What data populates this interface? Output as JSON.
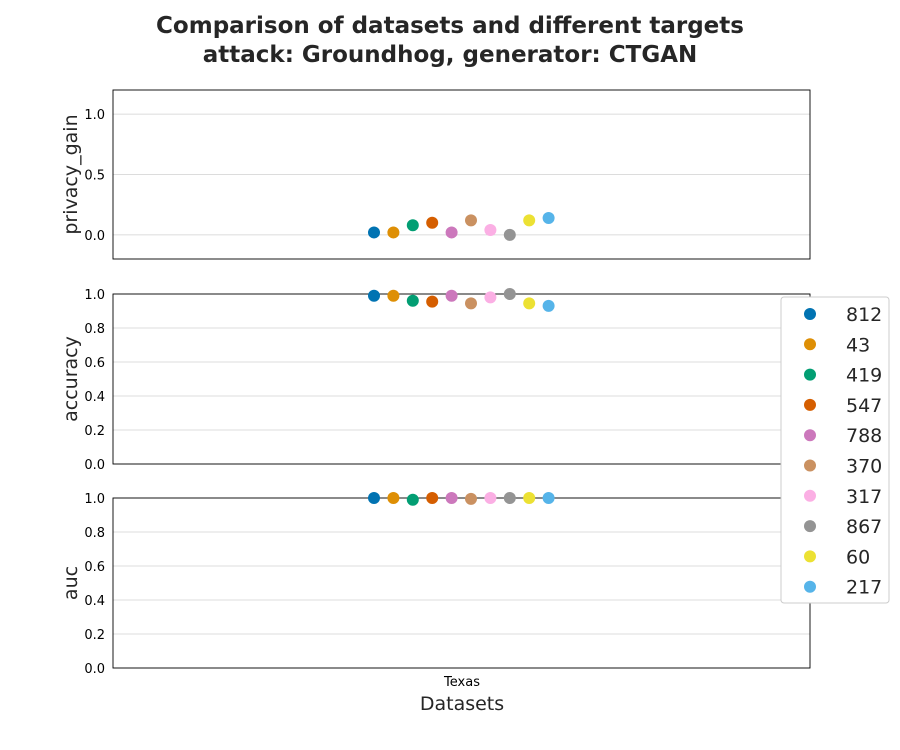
{
  "chart_data": {
    "type": "scatter",
    "title_line1": "Comparison of datasets and different targets",
    "title_line2": "attack: Groundhog, generator: CTGAN",
    "xlabel": "Datasets",
    "categories": [
      "Texas"
    ],
    "grid": "horizontal",
    "legend_placement": "right",
    "legend": [
      "812",
      "43",
      "419",
      "547",
      "788",
      "370",
      "317",
      "867",
      "60",
      "217"
    ],
    "colors": [
      "#0173b2",
      "#de8f05",
      "#029e73",
      "#d55e00",
      "#cc78bc",
      "#ca9161",
      "#fbafe4",
      "#949494",
      "#ece133",
      "#56b4e9"
    ],
    "panels": [
      {
        "ylabel": "privacy_gain",
        "ylim": [
          -0.2,
          1.2
        ],
        "yticks": [
          "0.0",
          "0.5",
          "1.0"
        ],
        "values": [
          0.02,
          0.02,
          0.08,
          0.1,
          0.02,
          0.12,
          0.04,
          0.0,
          0.12,
          0.14
        ]
      },
      {
        "ylabel": "accuracy",
        "ylim": [
          0.0,
          1.0
        ],
        "yticks": [
          "0.0",
          "0.2",
          "0.4",
          "0.6",
          "0.8",
          "1.0"
        ],
        "values": [
          0.99,
          0.99,
          0.96,
          0.955,
          0.99,
          0.945,
          0.98,
          1.0,
          0.945,
          0.93
        ]
      },
      {
        "ylabel": "auc",
        "ylim": [
          0.0,
          1.0
        ],
        "yticks": [
          "0.0",
          "0.2",
          "0.4",
          "0.6",
          "0.8",
          "1.0"
        ],
        "values": [
          1.0,
          1.0,
          0.99,
          1.0,
          1.0,
          0.995,
          1.0,
          1.0,
          1.0,
          1.0
        ]
      }
    ]
  }
}
